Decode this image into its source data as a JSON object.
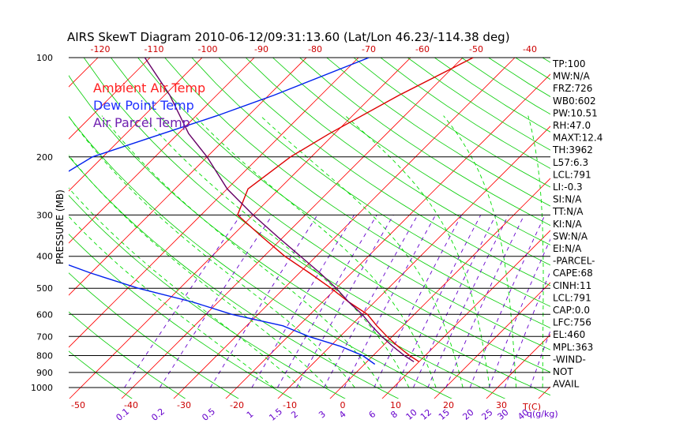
{
  "chart_data": {
    "type": "line",
    "title": "AIRS SkewT Diagram 2010-06-12/09:31:13.60 (Lat/Lon 46.23/-114.38 deg)",
    "ylabel": "PRESSURE (MB)",
    "xlabel_temp": "T(C)",
    "xlabel_mix": "q(g/kg)",
    "pressure_ticks": [
      100,
      200,
      300,
      400,
      500,
      600,
      700,
      800,
      900,
      1000
    ],
    "pressure_levels": [
      100,
      200,
      300,
      400,
      500,
      600,
      700,
      800,
      900,
      1000
    ],
    "top_temp_ticks": [
      "-120",
      "-110",
      "-100",
      "-90",
      "-80",
      "-70",
      "-60",
      "-50",
      "-40"
    ],
    "bottom_temp_ticks": [
      "-50",
      "-40",
      "-30",
      "-20",
      "-10",
      "0",
      "10",
      "20",
      "30"
    ],
    "mixing_ratio_ticks": [
      "0.1",
      "0.2",
      "0.5",
      "1",
      "1.5",
      "2",
      "3",
      "4",
      "6",
      "8",
      "10",
      "12",
      "15",
      "20",
      "25",
      "30",
      "40"
    ],
    "legend": [
      {
        "label": "Ambient Air Temp",
        "color": "#ff2020"
      },
      {
        "label": "Dew Point Temp",
        "color": "#2030ff"
      },
      {
        "label": "Air Parcel Temp",
        "color": "#7020b0"
      }
    ],
    "series": [
      {
        "name": "Ambient Air Temp",
        "color": "#dd0000",
        "points": [
          [
            100,
            -38
          ],
          [
            130,
            -45
          ],
          [
            170,
            -51
          ],
          [
            200,
            -54
          ],
          [
            250,
            -56
          ],
          [
            300,
            -53
          ],
          [
            350,
            -44
          ],
          [
            400,
            -36
          ],
          [
            450,
            -28
          ],
          [
            500,
            -21
          ],
          [
            550,
            -15
          ],
          [
            600,
            -9
          ],
          [
            650,
            -5
          ],
          [
            700,
            -1
          ],
          [
            750,
            3
          ],
          [
            800,
            7
          ],
          [
            835,
            10
          ]
        ]
      },
      {
        "name": "Dew Point Temp",
        "color": "#0020ee",
        "points": [
          [
            100,
            -58
          ],
          [
            130,
            -69
          ],
          [
            150,
            -76
          ],
          [
            170,
            -83
          ],
          [
            200,
            -92
          ],
          [
            250,
            -96
          ],
          [
            300,
            -92
          ],
          [
            350,
            -88
          ],
          [
            400,
            -82
          ],
          [
            450,
            -70
          ],
          [
            500,
            -58
          ],
          [
            550,
            -45
          ],
          [
            600,
            -35
          ],
          [
            650,
            -23
          ],
          [
            700,
            -16
          ],
          [
            750,
            -8
          ],
          [
            800,
            -2
          ],
          [
            850,
            2
          ]
        ]
      },
      {
        "name": "Air Parcel Temp",
        "color": "#660066",
        "points": [
          [
            100,
            -101
          ],
          [
            130,
            -89
          ],
          [
            170,
            -78
          ],
          [
            200,
            -70
          ],
          [
            250,
            -60
          ],
          [
            300,
            -50
          ],
          [
            350,
            -41
          ],
          [
            400,
            -33
          ],
          [
            450,
            -26
          ],
          [
            500,
            -20
          ],
          [
            550,
            -15
          ],
          [
            600,
            -10
          ],
          [
            650,
            -6
          ],
          [
            700,
            -2
          ],
          [
            750,
            2
          ],
          [
            800,
            6
          ],
          [
            835,
            9
          ]
        ]
      }
    ],
    "indices": [
      "TP:100",
      "MW:N/A",
      "FRZ:726",
      "WB0:602",
      "PW:10.51",
      "RH:47.0",
      "MAXT:12.4",
      "TH:3962",
      "L57:6.3",
      "LCL:791",
      "LI:-0.3",
      "SI:N/A",
      "TT:N/A",
      "KI:N/A",
      "SW:N/A",
      "EI:N/A",
      "-PARCEL-",
      "CAPE:68",
      "CINH:11",
      "LCL:791",
      "CAP:0.0",
      "LFC:756",
      "EL:460",
      "MPL:363",
      "-WIND-",
      "NOT",
      "AVAIL"
    ],
    "colors": {
      "isotherm": "#ff0000",
      "dry_adiabat": "#00cc00",
      "moist_adiabat": "#00dd00",
      "mixing_ratio": "#6600cc",
      "isobar": "#000000"
    }
  }
}
